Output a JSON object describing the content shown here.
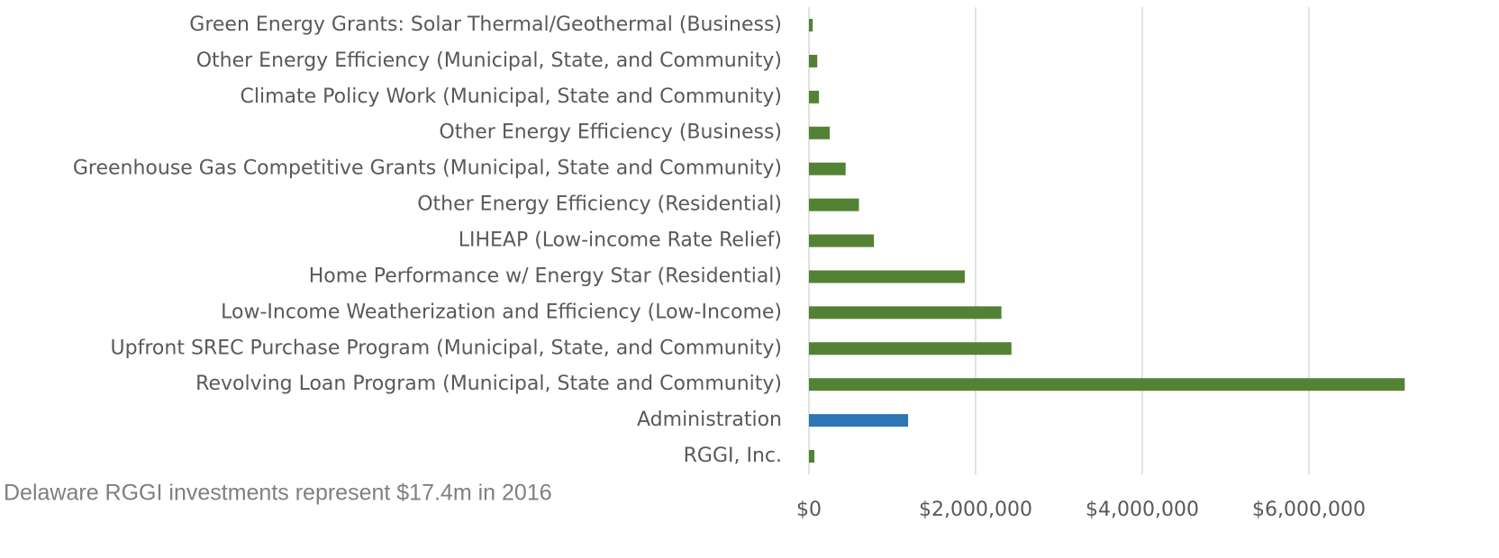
{
  "chart_data": {
    "type": "bar",
    "orientation": "horizontal",
    "categories": [
      "Green Energy Grants: Solar Thermal/Geothermal (Business)",
      "Other Energy Efficiency (Municipal, State, and Community)",
      "Climate Policy Work (Municipal, State and Community)",
      "Other Energy Efficiency (Business)",
      "Greenhouse Gas Competitive Grants (Municipal, State and Community)",
      "Other Energy Efficiency (Residential)",
      "LIHEAP (Low-income Rate Relief)",
      "Home Performance w/ Energy Star (Residential)",
      "Low-Income Weatherization and Efficiency (Low-Income)",
      "Upfront SREC Purchase Program (Municipal, State, and Community)",
      "Revolving Loan Program (Municipal, State and Community)",
      "Administration",
      "RGGI, Inc."
    ],
    "values": [
      45000,
      100000,
      120000,
      250000,
      440000,
      600000,
      780000,
      1870000,
      2310000,
      2430000,
      7150000,
      1190000,
      65000
    ],
    "colors": [
      "#548235",
      "#548235",
      "#548235",
      "#548235",
      "#548235",
      "#548235",
      "#548235",
      "#548235",
      "#548235",
      "#548235",
      "#548235",
      "#2e75b6",
      "#548235"
    ],
    "xlim": [
      0,
      7200000
    ],
    "xticks": [
      {
        "value": 0,
        "label": "$0"
      },
      {
        "value": 2000000,
        "label": "$2,000,000"
      },
      {
        "value": 4000000,
        "label": "$4,000,000"
      },
      {
        "value": 6000000,
        "label": "$6,000,000"
      }
    ],
    "grid": true,
    "annotation": "Delaware RGGI investments represent $17.4m in 2016"
  }
}
